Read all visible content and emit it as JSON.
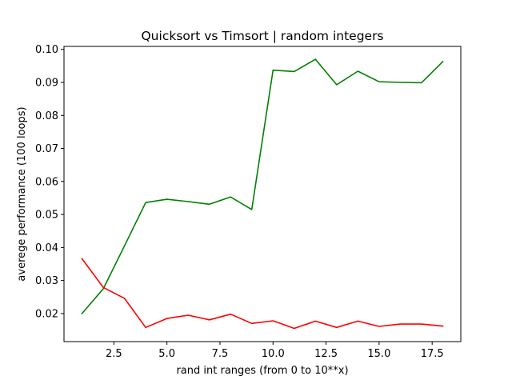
{
  "chart_data": {
    "type": "line",
    "title": "Quicksort vs Timsort | random integers",
    "xlabel": "rand int ranges (from 0 to 10**x)",
    "ylabel": "averege performance (100 loops)",
    "xlim": [
      0.15,
      18.85
    ],
    "ylim": [
      0.0115,
      0.1009
    ],
    "xticks": [
      2.5,
      5.0,
      7.5,
      10.0,
      12.5,
      15.0,
      17.5
    ],
    "xtick_labels": [
      "2.5",
      "5.0",
      "7.5",
      "10.0",
      "12.5",
      "15.0",
      "17.5"
    ],
    "yticks": [
      0.02,
      0.03,
      0.04,
      0.05,
      0.06,
      0.07,
      0.08,
      0.09,
      0.1
    ],
    "ytick_labels": [
      "0.02",
      "0.03",
      "0.04",
      "0.05",
      "0.06",
      "0.07",
      "0.08",
      "0.09",
      "0.10"
    ],
    "grid": false,
    "legend": "none",
    "x": [
      1,
      2,
      3,
      4,
      5,
      6,
      7,
      8,
      9,
      10,
      11,
      12,
      13,
      14,
      15,
      16,
      17,
      18
    ],
    "series": [
      {
        "color": "#008000",
        "values": [
          0.02,
          0.0275,
          0.0405,
          0.0536,
          0.0546,
          0.0539,
          0.0531,
          0.0553,
          0.0515,
          0.0937,
          0.0933,
          0.097,
          0.0893,
          0.0934,
          0.0902,
          0.09,
          0.0899,
          0.0963
        ]
      },
      {
        "color": "#ff0000",
        "values": [
          0.0366,
          0.0279,
          0.0246,
          0.0158,
          0.0185,
          0.0195,
          0.0181,
          0.0198,
          0.017,
          0.0178,
          0.0155,
          0.0177,
          0.0158,
          0.0177,
          0.0161,
          0.0168,
          0.0168,
          0.0162
        ]
      }
    ]
  }
}
